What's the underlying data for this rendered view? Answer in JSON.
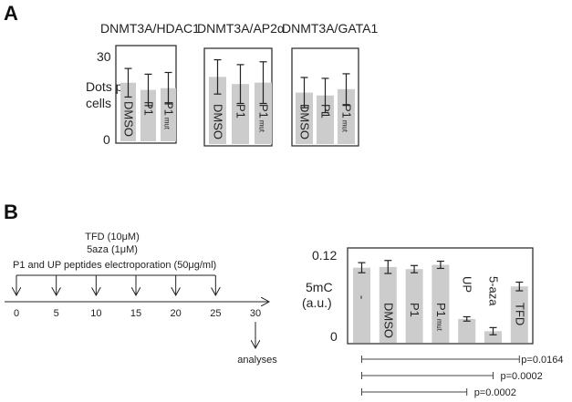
{
  "panel_a": {
    "letter": "A",
    "ylabel_line1": "Dots per",
    "ylabel_line2": "cells"
  },
  "panel_b": {
    "letter": "B",
    "timeline": {
      "line1": "TFD (10μM)",
      "line2": "5aza (1μM)",
      "line3": "P1 and UP peptides electroporation (50μg/ml)",
      "ticks": [
        "0",
        "5",
        "10",
        "15",
        "20",
        "25",
        "30"
      ],
      "treatment_days": [
        0,
        5,
        10,
        15,
        20,
        25
      ],
      "analysis_day": 30,
      "analysis_label": "analyses"
    },
    "ylabel_line1": "5mC",
    "ylabel_line2": "(a.u.)",
    "pvalues": [
      {
        "from": "-",
        "to": "TFD",
        "label": "p=0.0164"
      },
      {
        "from": "-",
        "to": "5-aza",
        "label": "p=0.0002"
      },
      {
        "from": "-",
        "to": "UP",
        "label": "p=0.0002"
      }
    ]
  },
  "chart_data": [
    {
      "type": "bar",
      "title": "DNMT3A/HDAC1",
      "ylabel": "Dots per cells",
      "ylim": [
        0,
        30
      ],
      "yticks": [
        "0",
        "30"
      ],
      "categories": [
        "DMSO",
        "P1",
        "P1mut"
      ],
      "values": [
        20.5,
        18,
        18.6
      ],
      "errors": [
        5,
        5.5,
        5.5
      ],
      "bar_color": "#cccccc"
    },
    {
      "type": "bar",
      "title": "DNMT3A/AP2α",
      "ylim": [
        0,
        30
      ],
      "categories": [
        "DMSO",
        "P1",
        "P1mut"
      ],
      "values": [
        23.5,
        21,
        21.5
      ],
      "errors": [
        6,
        6.8,
        7.3
      ],
      "bar_color": "#cccccc"
    },
    {
      "type": "bar",
      "title": "DNMT3A/GATA1",
      "ylim": [
        0,
        30
      ],
      "categories": [
        "DMSO",
        "P1",
        "P1mut"
      ],
      "values": [
        18,
        17,
        19.2
      ],
      "errors": [
        5.3,
        6,
        5.4
      ],
      "bar_color": "#cccccc"
    },
    {
      "type": "bar",
      "ylabel": "5mC (a.u.)",
      "ylim": [
        0,
        0.12
      ],
      "yticks": [
        "0",
        "0.12"
      ],
      "categories": [
        "-",
        "DMSO",
        "P1",
        "P1mut",
        "UP",
        "5-aza",
        "TFD"
      ],
      "values": [
        0.104,
        0.105,
        0.102,
        0.108,
        0.033,
        0.016,
        0.078
      ],
      "errors": [
        0.007,
        0.009,
        0.005,
        0.005,
        0.003,
        0.005,
        0.006
      ],
      "bar_color": "#cccccc"
    }
  ]
}
